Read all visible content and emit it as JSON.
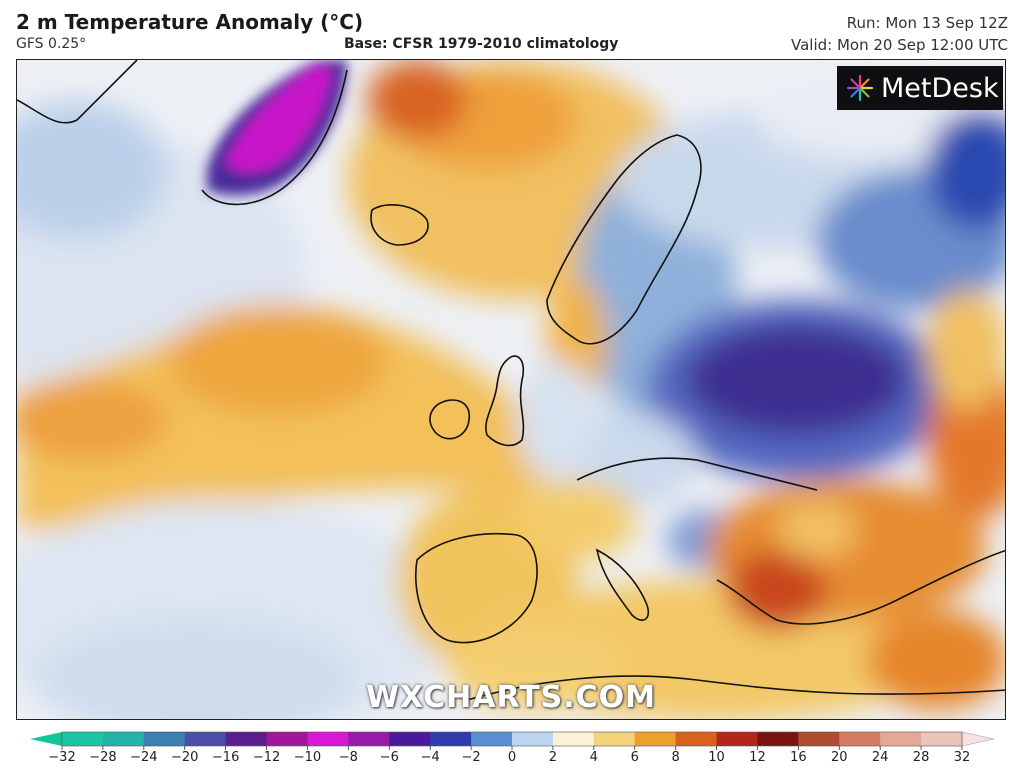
{
  "header": {
    "title": "2 m Temperature Anomaly (°C)",
    "model": "GFS 0.25°",
    "base": "Base: CFSR 1979-2010 climatology",
    "run": "Run: Mon 13 Sep 12Z",
    "valid": "Valid: Mon 20 Sep 12:00 UTC"
  },
  "branding": {
    "logo": "MetDesk",
    "watermark": "WXCHARTS.COM"
  },
  "legend": {
    "ticks": [
      "−32",
      "−28",
      "−24",
      "−20",
      "−16",
      "−12",
      "−10",
      "−8",
      "−6",
      "−4",
      "−2",
      "0",
      "2",
      "4",
      "6",
      "8",
      "10",
      "12",
      "16",
      "20",
      "24",
      "28",
      "32"
    ],
    "colors": [
      "#1cc6a0",
      "#27b2a8",
      "#3c7fb0",
      "#4a4ea8",
      "#5c1f8e",
      "#a0179c",
      "#d61ad6",
      "#9a1aa8",
      "#4a1a9c",
      "#2e3cb0",
      "#5a8ed4",
      "#bcd4ee",
      "#fbf0d8",
      "#f4d27c",
      "#eda02c",
      "#d8621a",
      "#b0281c",
      "#7c1212",
      "#b04a30",
      "#d47c64",
      "#e4a898",
      "#ecc4bc",
      "#f4dede"
    ]
  },
  "colors": {
    "ocean_neutral": "#eef1f6",
    "warm": "#f2c35a",
    "cold": "#4d6fc0",
    "deep_cold": "#3b2a8c",
    "greenland_extreme": "#c919c9"
  }
}
